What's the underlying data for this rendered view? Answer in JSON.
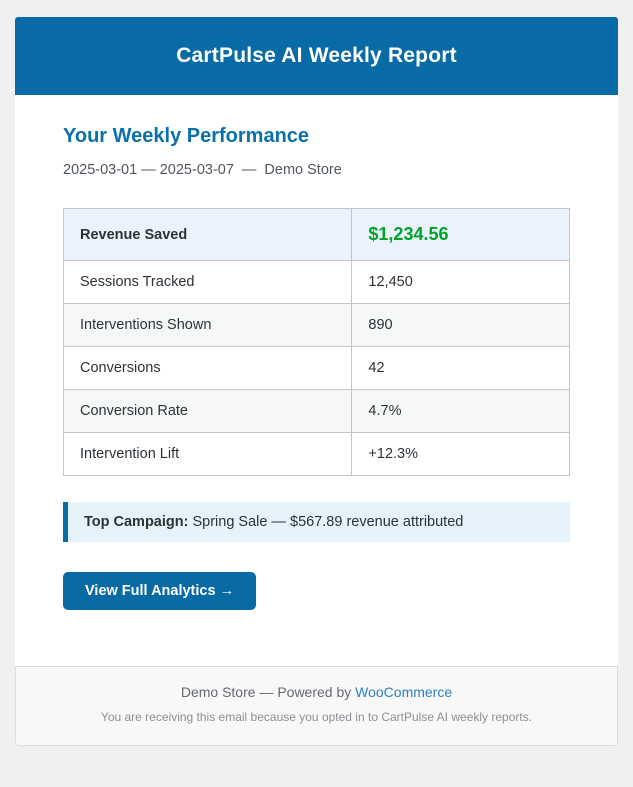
{
  "colors": {
    "accent_blue": "#086ba6",
    "heading_blue": "#0a70aa",
    "revenue_green": "#00a32a",
    "callout_bg": "#e5f2fa",
    "callout_border": "#0a6aa4",
    "highlight_row_bg": "#eaf3fb",
    "alt_row_bg": "#f6f7f7",
    "link_blue": "#2b80c2",
    "page_bg": "#f0f0f1"
  },
  "header": {
    "title": "CartPulse AI Weekly Report"
  },
  "report": {
    "heading": "Your Weekly Performance",
    "period": "2025-03-01 — 2025-03-07",
    "separator": "—",
    "store": "Demo Store"
  },
  "metrics": {
    "rows": [
      {
        "label": "Revenue Saved",
        "value": "$1,234.56"
      },
      {
        "label": "Sessions Tracked",
        "value": "12,450"
      },
      {
        "label": "Interventions Shown",
        "value": "890"
      },
      {
        "label": "Conversions",
        "value": "42"
      },
      {
        "label": "Conversion Rate",
        "value": "4.7%"
      },
      {
        "label": "Intervention Lift",
        "value": "+12.3%"
      }
    ]
  },
  "callout": {
    "label": "Top Campaign:",
    "text": "Spring Sale — $567.89 revenue attributed"
  },
  "cta": {
    "label": "View Full Analytics →"
  },
  "footer": {
    "powered_prefix": "Demo Store — Powered by",
    "link_label": "WooCommerce",
    "note": "You are receiving this email because you opted in to CartPulse AI weekly reports."
  }
}
